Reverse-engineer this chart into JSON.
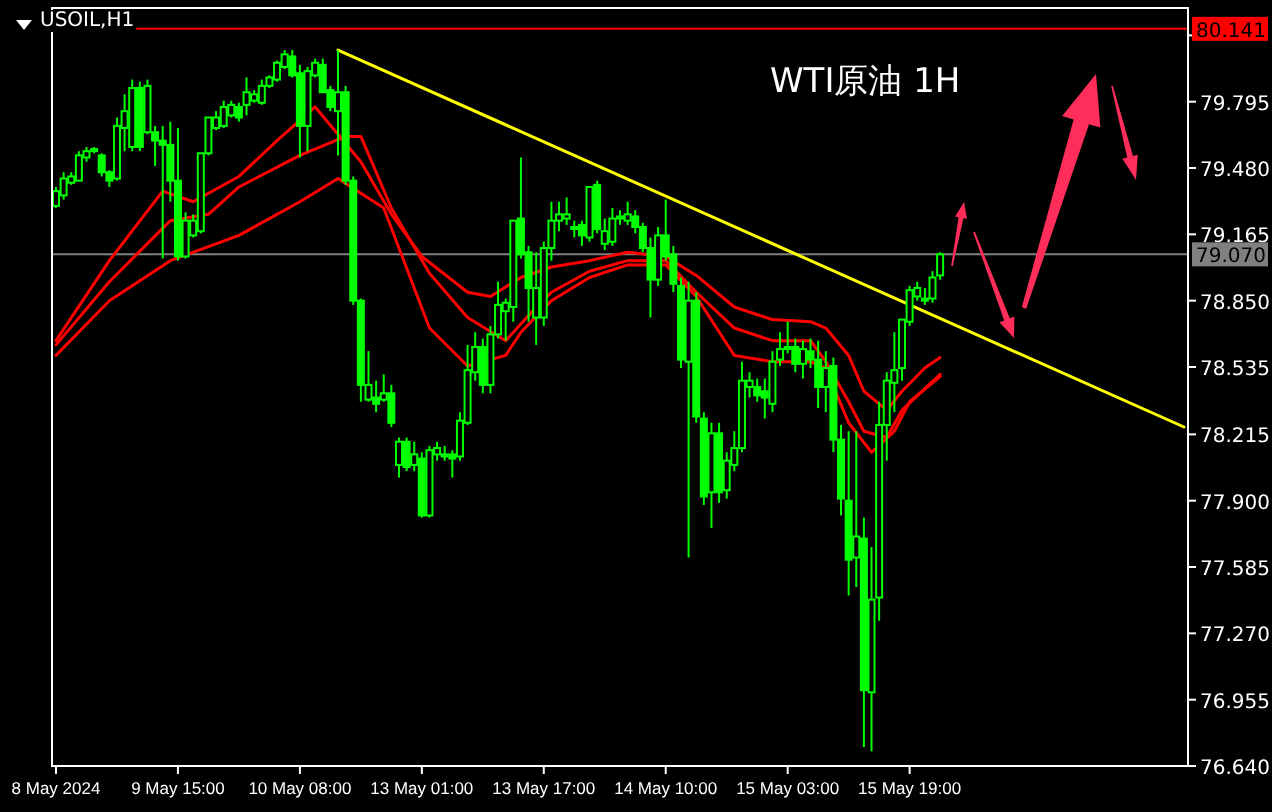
{
  "chart_data": {
    "type": "candlestick",
    "title": "USOIL,H1",
    "color": "#00ff00",
    "annotations": [
      "WTI原油 1H"
    ],
    "categories": [
      "8 May 2024",
      null,
      null,
      null,
      null,
      null,
      null,
      null,
      null,
      null,
      null,
      null,
      null,
      null,
      null,
      null,
      "9 May 15:00",
      null,
      null,
      null,
      null,
      null,
      null,
      null,
      null,
      null,
      null,
      null,
      null,
      null,
      null,
      null,
      "10 May 08:00",
      null,
      null,
      null,
      null,
      null,
      null,
      null,
      null,
      null,
      null,
      null,
      null,
      null,
      null,
      null,
      "13 May 01:00",
      null,
      null,
      null,
      null,
      null,
      null,
      null,
      null,
      null,
      null,
      null,
      null,
      null,
      null,
      null,
      "13 May 17:00",
      null,
      null,
      null,
      null,
      null,
      null,
      null,
      null,
      null,
      null,
      null,
      null,
      null,
      null,
      null,
      "14 May 10:00",
      null,
      null,
      null,
      null,
      null,
      null,
      null,
      null,
      null,
      null,
      null,
      null,
      null,
      null,
      null,
      "15 May 03:00",
      null,
      null,
      null,
      null,
      null,
      null,
      null,
      null,
      null,
      null,
      null,
      null,
      null,
      null,
      null,
      "15 May 19:00",
      null,
      null,
      null,
      null,
      null,
      null,
      null,
      null,
      null,
      null,
      null,
      null,
      null,
      null,
      null,
      null,
      null,
      null,
      null,
      null,
      null,
      null,
      null,
      null,
      null,
      null,
      null,
      null,
      null,
      null,
      null,
      null,
      null,
      null,
      null,
      null
    ],
    "ohlc": [
      [
        79.3,
        79.39,
        79.29,
        79.37
      ],
      [
        79.35,
        79.46,
        79.33,
        79.43
      ],
      [
        79.41,
        79.46,
        79.4,
        79.44
      ],
      [
        79.42,
        79.56,
        79.42,
        79.54
      ],
      [
        79.53,
        79.58,
        79.51,
        79.56
      ],
      [
        79.56,
        79.58,
        79.55,
        79.57
      ],
      [
        79.54,
        79.55,
        79.44,
        79.46
      ],
      [
        79.46,
        79.47,
        79.39,
        79.42
      ],
      [
        79.43,
        79.72,
        79.42,
        79.68
      ],
      [
        79.67,
        79.83,
        79.56,
        79.75
      ],
      [
        79.58,
        79.9,
        79.56,
        79.86
      ],
      [
        79.86,
        79.89,
        79.56,
        79.58
      ],
      [
        79.65,
        79.9,
        79.64,
        79.87
      ],
      [
        79.65,
        79.68,
        79.49,
        79.61
      ],
      [
        79.61,
        79.68,
        79.05,
        79.59
      ],
      [
        79.59,
        79.7,
        79.32,
        79.42
      ],
      [
        79.42,
        79.67,
        79.04,
        79.06
      ],
      [
        79.06,
        79.27,
        79.05,
        79.23
      ],
      [
        79.16,
        79.26,
        79.15,
        79.23
      ],
      [
        79.18,
        79.55,
        79.17,
        79.55
      ],
      [
        79.55,
        79.72,
        79.54,
        79.72
      ],
      [
        79.67,
        79.75,
        79.66,
        79.72
      ],
      [
        79.68,
        79.8,
        79.67,
        79.77
      ],
      [
        79.73,
        79.8,
        79.72,
        79.78
      ],
      [
        79.77,
        79.79,
        79.7,
        79.72
      ],
      [
        79.78,
        79.91,
        79.73,
        79.84
      ],
      [
        79.8,
        79.85,
        79.79,
        79.83
      ],
      [
        79.79,
        79.9,
        79.78,
        79.87
      ],
      [
        79.87,
        79.92,
        79.86,
        79.91
      ],
      [
        79.9,
        79.99,
        79.89,
        79.98
      ],
      [
        79.96,
        80.04,
        79.95,
        80.02
      ],
      [
        80.01,
        80.04,
        79.91,
        79.92
      ],
      [
        79.93,
        79.97,
        79.53,
        79.68
      ],
      [
        79.68,
        79.96,
        79.56,
        79.94
      ],
      [
        79.92,
        80.0,
        79.91,
        79.98
      ],
      [
        79.97,
        80.0,
        79.84,
        79.84
      ],
      [
        79.85,
        79.87,
        79.75,
        79.77
      ],
      [
        79.75,
        80.04,
        79.54,
        79.84
      ],
      [
        79.84,
        79.87,
        79.4,
        79.42
      ],
      [
        79.42,
        79.44,
        78.83,
        78.85
      ],
      [
        78.85,
        78.86,
        78.37,
        78.45
      ],
      [
        78.38,
        78.61,
        78.37,
        78.45
      ],
      [
        78.39,
        78.47,
        78.32,
        78.36
      ],
      [
        78.38,
        78.5,
        78.37,
        78.41
      ],
      [
        78.41,
        78.45,
        78.25,
        78.27
      ],
      [
        78.07,
        78.2,
        78.01,
        78.18
      ],
      [
        78.18,
        78.2,
        78.04,
        78.06
      ],
      [
        78.07,
        78.18,
        78.04,
        78.12
      ],
      [
        78.1,
        78.13,
        77.82,
        77.83
      ],
      [
        77.83,
        78.16,
        77.82,
        78.14
      ],
      [
        78.12,
        78.18,
        78.09,
        78.15
      ],
      [
        78.11,
        78.16,
        78.09,
        78.12
      ],
      [
        78.12,
        78.14,
        78.01,
        78.1
      ],
      [
        78.11,
        78.32,
        78.09,
        78.28
      ],
      [
        78.27,
        78.64,
        78.26,
        78.52
      ],
      [
        78.51,
        78.7,
        78.47,
        78.63
      ],
      [
        78.63,
        78.67,
        78.41,
        78.45
      ],
      [
        78.45,
        78.73,
        78.41,
        78.69
      ],
      [
        78.69,
        78.94,
        78.67,
        78.83
      ],
      [
        78.8,
        78.86,
        78.66,
        78.84
      ],
      [
        78.82,
        79.23,
        78.75,
        79.23
      ],
      [
        79.24,
        79.53,
        79.05,
        79.07
      ],
      [
        79.08,
        79.11,
        78.75,
        78.91
      ],
      [
        78.77,
        79.08,
        78.64,
        78.91
      ],
      [
        78.77,
        79.13,
        78.73,
        79.1
      ],
      [
        79.1,
        79.32,
        79.04,
        79.23
      ],
      [
        79.23,
        79.32,
        79.18,
        79.26
      ],
      [
        79.24,
        79.34,
        79.21,
        79.26
      ],
      [
        79.2,
        79.23,
        79.15,
        79.19
      ],
      [
        79.21,
        79.23,
        79.11,
        79.16
      ],
      [
        79.15,
        79.39,
        79.13,
        79.39
      ],
      [
        79.4,
        79.42,
        79.17,
        79.19
      ],
      [
        79.12,
        79.24,
        79.09,
        79.18
      ],
      [
        79.13,
        79.29,
        79.11,
        79.24
      ],
      [
        79.24,
        79.28,
        79.21,
        79.25
      ],
      [
        79.23,
        79.32,
        79.21,
        79.26
      ],
      [
        79.25,
        79.28,
        79.17,
        79.2
      ],
      [
        79.2,
        79.22,
        79.08,
        79.1
      ],
      [
        79.1,
        79.15,
        78.77,
        78.95
      ],
      [
        78.95,
        79.2,
        78.92,
        79.16
      ],
      [
        79.16,
        79.33,
        79.04,
        79.06
      ],
      [
        79.07,
        79.11,
        78.89,
        78.93
      ],
      [
        78.92,
        78.96,
        78.53,
        78.57
      ],
      [
        78.56,
        78.94,
        77.63,
        78.85
      ],
      [
        78.85,
        78.89,
        78.27,
        78.3
      ],
      [
        78.29,
        78.32,
        77.88,
        77.92
      ],
      [
        77.94,
        78.27,
        77.77,
        78.22
      ],
      [
        78.22,
        78.27,
        77.89,
        77.94
      ],
      [
        77.95,
        78.13,
        77.91,
        78.09
      ],
      [
        78.07,
        78.23,
        78.04,
        78.15
      ],
      [
        78.15,
        78.56,
        78.13,
        78.47
      ],
      [
        78.44,
        78.51,
        78.39,
        78.47
      ],
      [
        78.44,
        78.48,
        78.37,
        78.4
      ],
      [
        78.42,
        78.48,
        78.29,
        78.39
      ],
      [
        78.36,
        78.61,
        78.32,
        78.56
      ],
      [
        78.57,
        78.7,
        78.54,
        78.62
      ],
      [
        78.62,
        78.75,
        78.6,
        78.63
      ],
      [
        78.63,
        78.67,
        78.51,
        78.55
      ],
      [
        78.55,
        78.66,
        78.48,
        78.62
      ],
      [
        78.61,
        78.67,
        78.53,
        78.57
      ],
      [
        78.57,
        78.66,
        78.34,
        78.44
      ],
      [
        78.44,
        78.61,
        78.32,
        78.53
      ],
      [
        78.54,
        78.58,
        78.13,
        78.19
      ],
      [
        78.19,
        78.26,
        77.83,
        77.91
      ],
      [
        77.9,
        78.23,
        77.45,
        77.62
      ],
      [
        77.63,
        78.23,
        77.49,
        77.73
      ],
      [
        77.72,
        77.82,
        76.73,
        77.0
      ],
      [
        76.99,
        77.68,
        76.71,
        77.43
      ],
      [
        77.44,
        78.37,
        77.33,
        78.26
      ],
      [
        78.26,
        78.51,
        78.09,
        78.47
      ],
      [
        78.46,
        78.7,
        78.32,
        78.52
      ],
      [
        78.53,
        78.76,
        78.47,
        78.76
      ],
      [
        78.75,
        78.92,
        78.73,
        78.9
      ],
      [
        78.87,
        78.94,
        78.85,
        78.91
      ],
      [
        78.85,
        78.91,
        78.83,
        78.86
      ],
      [
        78.86,
        78.99,
        78.84,
        78.96
      ],
      [
        78.97,
        79.08,
        78.95,
        79.07
      ],
      null,
      null,
      null,
      null,
      null,
      null,
      null,
      null,
      null,
      null,
      null,
      null,
      null,
      null,
      null,
      null,
      null,
      null,
      null,
      null,
      null,
      null,
      null,
      null,
      null,
      null,
      null,
      null,
      null,
      null,
      null,
      null
    ],
    "series": [
      {
        "type": "line",
        "color": "#ff0000",
        "values": [
          78.66,
          null,
          null,
          null,
          null,
          null,
          null,
          79.04,
          null,
          null,
          null,
          null,
          null,
          null,
          79.37,
          null,
          null,
          null,
          79.32,
          null,
          null,
          null,
          null,
          null,
          79.44,
          null,
          null,
          null,
          null,
          79.61,
          null,
          null,
          null,
          null,
          79.77,
          null,
          null,
          null,
          null,
          null,
          79.51,
          null,
          null,
          null,
          79.26,
          null,
          null,
          null,
          79.06,
          null,
          null,
          null,
          null,
          null,
          78.89,
          null,
          null,
          78.87,
          null,
          null,
          null,
          78.96,
          null,
          null,
          null,
          79.01,
          null,
          null,
          null,
          null,
          79.04,
          null,
          null,
          null,
          null,
          79.08,
          null,
          null,
          null,
          null,
          79.06,
          null,
          null,
          null,
          78.97,
          null,
          null,
          null,
          null,
          78.82,
          null,
          null,
          null,
          null,
          78.76,
          null,
          null,
          null,
          null,
          78.75,
          null,
          78.72,
          null,
          null,
          78.59,
          null,
          78.42,
          null,
          null,
          78.33,
          null,
          78.42,
          null,
          null,
          78.53,
          null,
          78.58,
          null,
          null,
          null,
          null,
          null,
          null,
          null,
          null,
          null,
          null,
          null,
          null,
          null,
          null,
          null,
          null,
          null,
          null,
          null,
          null,
          null,
          null,
          null,
          null,
          null,
          null,
          null,
          null,
          null,
          null,
          null,
          null
        ]
      },
      {
        "type": "line",
        "color": "#ff0000",
        "values": [
          78.64,
          null,
          null,
          null,
          null,
          null,
          null,
          78.94,
          null,
          null,
          null,
          null,
          null,
          null,
          null,
          79.23,
          null,
          null,
          null,
          null,
          79.26,
          null,
          null,
          null,
          79.39,
          null,
          null,
          null,
          null,
          null,
          null,
          null,
          79.54,
          null,
          null,
          null,
          null,
          null,
          79.63,
          null,
          79.63,
          null,
          null,
          null,
          79.29,
          null,
          null,
          null,
          null,
          78.98,
          null,
          null,
          null,
          null,
          78.77,
          null,
          null,
          null,
          null,
          78.66,
          null,
          null,
          78.78,
          null,
          null,
          78.89,
          null,
          null,
          null,
          null,
          78.99,
          null,
          null,
          null,
          null,
          79.04,
          null,
          null,
          null,
          null,
          79.04,
          null,
          null,
          null,
          78.89,
          null,
          null,
          null,
          null,
          78.72,
          null,
          null,
          null,
          null,
          78.66,
          null,
          null,
          null,
          null,
          78.66,
          null,
          78.56,
          null,
          null,
          78.37,
          null,
          78.23,
          null,
          null,
          78.2,
          null,
          78.33,
          null,
          null,
          null,
          null,
          78.5,
          null,
          null,
          null,
          null,
          null,
          null,
          null,
          null,
          null,
          null,
          null,
          null,
          null,
          null,
          null,
          null,
          null,
          null,
          null,
          null,
          null,
          null,
          null,
          null,
          null,
          null,
          null,
          null,
          null,
          null,
          null,
          null
        ]
      },
      {
        "type": "line",
        "color": "#ff0000",
        "values": [
          78.59,
          null,
          null,
          null,
          null,
          null,
          null,
          78.85,
          null,
          null,
          null,
          null,
          null,
          null,
          null,
          79.04,
          null,
          null,
          null,
          null,
          null,
          null,
          null,
          null,
          79.16,
          null,
          null,
          null,
          null,
          null,
          null,
          null,
          79.32,
          null,
          null,
          null,
          null,
          79.43,
          null,
          null,
          null,
          null,
          null,
          79.29,
          null,
          null,
          null,
          null,
          null,
          78.72,
          null,
          null,
          null,
          null,
          78.54,
          null,
          null,
          null,
          null,
          78.59,
          null,
          78.7,
          null,
          null,
          null,
          78.85,
          null,
          null,
          null,
          null,
          78.96,
          null,
          null,
          null,
          null,
          79.02,
          null,
          null,
          null,
          null,
          79.02,
          null,
          null,
          null,
          78.87,
          null,
          null,
          null,
          null,
          78.59,
          null,
          null,
          null,
          null,
          78.56,
          null,
          null,
          null,
          null,
          78.56,
          null,
          78.53,
          null,
          null,
          78.27,
          null,
          null,
          78.13,
          null,
          null,
          78.23,
          null,
          78.37,
          null,
          null,
          null,
          78.49,
          null,
          null,
          null,
          null,
          null,
          null,
          null,
          null,
          null,
          null,
          null,
          null,
          null,
          null,
          null,
          null,
          null,
          null,
          null,
          null,
          null,
          null,
          null,
          null,
          null,
          null,
          null,
          null,
          null,
          null,
          null,
          null
        ]
      },
      {
        "type": "line",
        "color": "#ffff00",
        "values": [
          null,
          null,
          null,
          null,
          null,
          null,
          null,
          null,
          null,
          null,
          null,
          null,
          null,
          null,
          null,
          null,
          null,
          null,
          null,
          null,
          null,
          null,
          null,
          null,
          null,
          null,
          null,
          null,
          null,
          null,
          null,
          null,
          null,
          null,
          null,
          null,
          null,
          80.04,
          null,
          null,
          null,
          null,
          null,
          null,
          null,
          null,
          null,
          null,
          null,
          null,
          null,
          null,
          null,
          null,
          null,
          null,
          null,
          null,
          null,
          null,
          null,
          null,
          null,
          null,
          null,
          null,
          null,
          null,
          null,
          null,
          null,
          null,
          null,
          null,
          null,
          null,
          null,
          null,
          null,
          null,
          null,
          null,
          null,
          null,
          null,
          null,
          null,
          null,
          null,
          null,
          null,
          null,
          null,
          null,
          null,
          null,
          null,
          null,
          null,
          null,
          null,
          null,
          null,
          null,
          null,
          null,
          null,
          null,
          null,
          null,
          null,
          null,
          null,
          null,
          null,
          null,
          null,
          null,
          null,
          null,
          null,
          null,
          null,
          null,
          null,
          null,
          null,
          null,
          null,
          null,
          null,
          null,
          null,
          null,
          null,
          null,
          null,
          null,
          null,
          null,
          null,
          null,
          null,
          null,
          null,
          null,
          null,
          null,
          78.25
        ]
      }
    ],
    "ylim": [
      76.64,
      80.24
    ],
    "yticks": [
      {
        "value": 76.64,
        "label": "76.640"
      },
      {
        "value": 76.955,
        "label": "76.955"
      },
      {
        "value": 77.27,
        "label": "77.270"
      },
      {
        "value": 77.585,
        "label": "77.585"
      },
      {
        "value": 77.9,
        "label": "77.900"
      },
      {
        "value": 78.215,
        "label": "78.215"
      },
      {
        "value": 78.535,
        "label": "78.535"
      },
      {
        "value": 78.85,
        "label": "78.850"
      },
      {
        "value": 79.165,
        "label": "79.165"
      },
      {
        "value": 79.48,
        "label": "79.480"
      },
      {
        "value": 79.795,
        "label": "79.795"
      },
      {
        "value": 80.11,
        "label": null
      }
    ],
    "ref_lines": [
      {
        "axis": "y",
        "value": 79.07,
        "label": "79.070",
        "color": "#808080"
      },
      {
        "axis": "y",
        "value": 80.141,
        "label": "80.141",
        "color": "#ff0000"
      }
    ]
  }
}
